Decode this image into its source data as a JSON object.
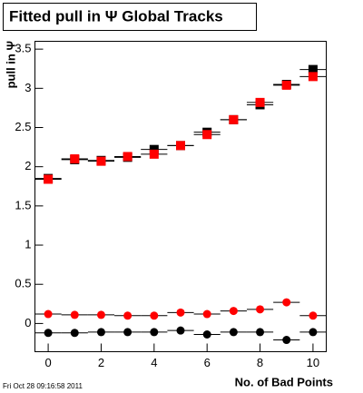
{
  "chart_data": {
    "type": "scatter",
    "title": "Fitted pull in Ψ Global Tracks",
    "x_label": "No. of Bad Points",
    "y_label": "pull in Ψ",
    "footer": "Fri Oct 28 09:16:58 2011",
    "x": [
      0,
      1,
      2,
      3,
      4,
      5,
      6,
      7,
      8,
      9,
      10
    ],
    "xlim": [
      -0.5,
      10.5
    ],
    "xticks": [
      0,
      2,
      4,
      6,
      8,
      10
    ],
    "ylim": [
      -0.36,
      3.6
    ],
    "yticks": [
      0,
      0.5,
      1,
      1.5,
      2,
      2.5,
      3,
      3.5
    ],
    "series": [
      {
        "color": "#000000",
        "marker": "square",
        "values": [
          1.85,
          2.09,
          2.08,
          2.12,
          2.22,
          2.27,
          2.44,
          2.6,
          2.79,
          3.05,
          3.24
        ]
      },
      {
        "color": "#ff0000",
        "marker": "square",
        "values": [
          1.84,
          2.1,
          2.07,
          2.13,
          2.16,
          2.27,
          2.41,
          2.6,
          2.82,
          3.04,
          3.15
        ]
      },
      {
        "color": "#ff0000",
        "marker": "circle",
        "values": [
          0.12,
          0.11,
          0.11,
          0.1,
          0.1,
          0.14,
          0.12,
          0.16,
          0.18,
          0.27,
          0.1
        ]
      },
      {
        "color": "#000000",
        "marker": "circle",
        "values": [
          -0.12,
          -0.12,
          -0.11,
          -0.11,
          -0.11,
          -0.09,
          -0.14,
          -0.11,
          -0.11,
          -0.21,
          -0.11
        ]
      }
    ]
  }
}
